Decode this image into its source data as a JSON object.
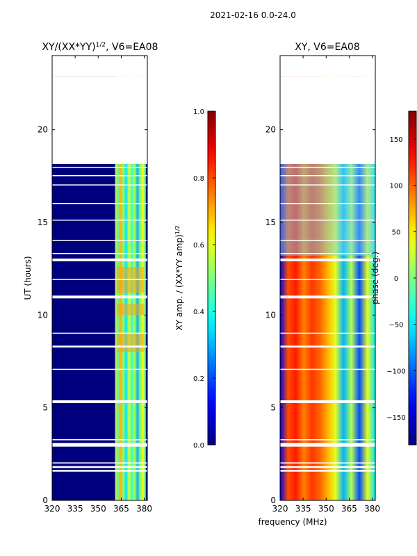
{
  "suptitle": "2021-02-16 0.0-24.0",
  "xlabel": "frequency (MHz)",
  "colors": {
    "white": "#ffffff",
    "axis": "#000000"
  },
  "chart_data": [
    {
      "type": "heatmap",
      "title_main": "XY/(XX*YY)",
      "title_sup": "1/2",
      "title_rest": ", V6=EA08",
      "ylabel": "UT (hours)",
      "xlim": [
        320,
        382
      ],
      "ylim": [
        0,
        24
      ],
      "xticks": [
        320,
        335,
        350,
        365,
        380
      ],
      "yticks": [
        0,
        5,
        10,
        15,
        20
      ],
      "colormap": "jet",
      "colorbar": {
        "label_main": "XY amp. / (XX*YY amp)",
        "label_sup": "1/2",
        "range": [
          0.0,
          1.0
        ],
        "ticks": [
          "0.0",
          "0.2",
          "0.4",
          "0.6",
          "0.8",
          "1.0"
        ]
      }
    },
    {
      "type": "heatmap",
      "title": "XY, V6=EA08",
      "xlim": [
        320,
        382
      ],
      "ylim": [
        0,
        24
      ],
      "xticks": [
        320,
        335,
        350,
        365,
        380
      ],
      "yticks": [
        0,
        5,
        10,
        15,
        20
      ],
      "colormap": "jet",
      "colorbar": {
        "label": "phase (deg.)",
        "range": [
          -180,
          180
        ],
        "ticks": [
          "150",
          "100",
          "50",
          "0",
          "−50",
          "−100",
          "−150"
        ]
      }
    }
  ],
  "missing_time_ranges_hours": [
    [
      22.85,
      24.0
    ],
    [
      1.55,
      1.65
    ],
    [
      1.75,
      1.85
    ],
    [
      2.0,
      2.05
    ],
    [
      2.9,
      3.1
    ],
    [
      3.25,
      3.3
    ],
    [
      5.25,
      5.4
    ],
    [
      7.05,
      7.1
    ],
    [
      8.25,
      8.35
    ],
    [
      9.0,
      9.05
    ],
    [
      10.9,
      11.05
    ],
    [
      11.9,
      11.95
    ],
    [
      12.9,
      13.05
    ],
    [
      13.3,
      13.35
    ],
    [
      14.0,
      14.05
    ],
    [
      15.1,
      15.15
    ],
    [
      16.0,
      16.05
    ],
    [
      17.0,
      17.05
    ],
    [
      17.5,
      17.55
    ],
    [
      17.95,
      18.0
    ],
    [
      18.15,
      22.85
    ]
  ],
  "amplitude_bright_band_mhz": [
    361,
    381
  ]
}
